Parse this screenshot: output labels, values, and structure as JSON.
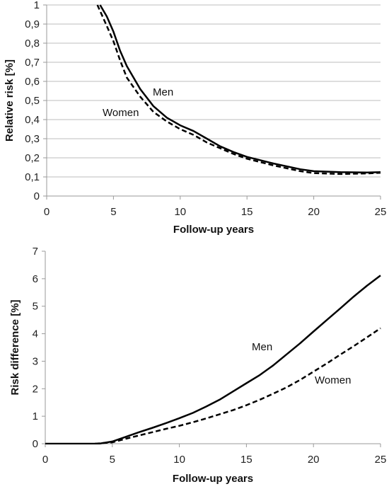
{
  "chart_data": [
    {
      "type": "line",
      "xlabel": "Follow-up years",
      "ylabel": "Relative risk [%]",
      "xlim": [
        0,
        25
      ],
      "ylim": [
        0,
        1
      ],
      "xticks": [
        "0",
        "5",
        "10",
        "15",
        "20",
        "25"
      ],
      "yticks": [
        "0",
        "0,1",
        "0,2",
        "0,3",
        "0,4",
        "0,5",
        "0,6",
        "0,7",
        "0,8",
        "0,9",
        "1"
      ],
      "grid": "horizontal",
      "legend": "none",
      "series": [
        {
          "name": "Men",
          "style": "solid",
          "x": [
            4.0,
            4.5,
            5,
            5.5,
            6,
            7,
            8,
            9,
            10,
            11,
            12,
            13,
            14,
            15,
            17,
            19,
            20,
            22,
            24,
            25
          ],
          "y": [
            1.0,
            0.94,
            0.86,
            0.76,
            0.68,
            0.56,
            0.47,
            0.41,
            0.37,
            0.34,
            0.3,
            0.26,
            0.23,
            0.205,
            0.17,
            0.14,
            0.13,
            0.125,
            0.123,
            0.125
          ]
        },
        {
          "name": "Women",
          "style": "dashed",
          "x": [
            3.8,
            4.5,
            5,
            5.5,
            6,
            7,
            8,
            9,
            10,
            11,
            12,
            13,
            14,
            15,
            17,
            19,
            20,
            22,
            24,
            25
          ],
          "y": [
            1.0,
            0.89,
            0.81,
            0.71,
            0.62,
            0.52,
            0.44,
            0.39,
            0.35,
            0.32,
            0.28,
            0.25,
            0.22,
            0.195,
            0.16,
            0.13,
            0.12,
            0.115,
            0.118,
            0.122
          ]
        }
      ]
    },
    {
      "type": "line",
      "xlabel": "Follow-up years",
      "ylabel": "Risk difference [%]",
      "xlim": [
        0,
        25
      ],
      "ylim": [
        0,
        7
      ],
      "xticks": [
        "0",
        "5",
        "10",
        "15",
        "20",
        "25"
      ],
      "yticks": [
        "0",
        "1",
        "2",
        "3",
        "4",
        "5",
        "6",
        "7"
      ],
      "grid": "none",
      "legend": "none",
      "series": [
        {
          "name": "Men",
          "style": "solid",
          "x": [
            0,
            4,
            5,
            6,
            7,
            8,
            9,
            10,
            11,
            12,
            13,
            14,
            15,
            16,
            17,
            18,
            19,
            20,
            21,
            22,
            23,
            24,
            25
          ],
          "y": [
            0,
            0,
            0.08,
            0.25,
            0.42,
            0.58,
            0.75,
            0.93,
            1.12,
            1.35,
            1.6,
            1.9,
            2.2,
            2.5,
            2.85,
            3.25,
            3.65,
            4.08,
            4.5,
            4.92,
            5.35,
            5.75,
            6.12
          ]
        },
        {
          "name": "Women",
          "style": "dashed",
          "x": [
            3.7,
            5,
            6,
            7,
            8,
            9,
            10,
            11,
            12,
            13,
            14,
            15,
            16,
            17,
            18,
            19,
            20,
            21,
            22,
            23,
            24,
            25
          ],
          "y": [
            0,
            0.05,
            0.18,
            0.3,
            0.42,
            0.54,
            0.65,
            0.78,
            0.92,
            1.07,
            1.22,
            1.4,
            1.6,
            1.82,
            2.05,
            2.32,
            2.62,
            2.92,
            3.24,
            3.55,
            3.87,
            4.2
          ]
        }
      ]
    }
  ]
}
